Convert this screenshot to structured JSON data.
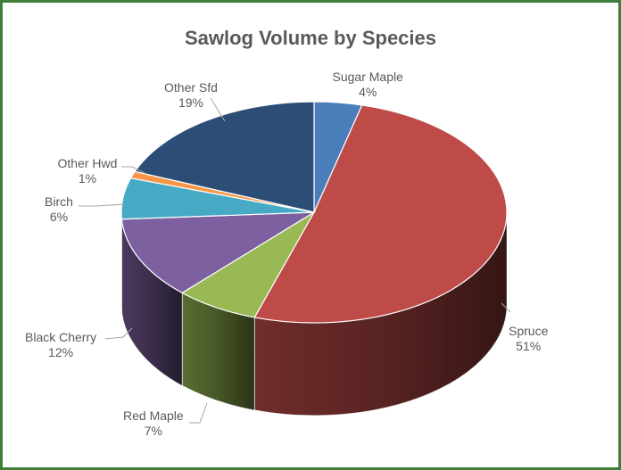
{
  "chart_data": {
    "type": "pie",
    "title": "Sawlog Volume by Species",
    "categories": [
      "Sugar Maple",
      "Spruce",
      "Red Maple",
      "Black Cherry",
      "Birch",
      "Other Hwd",
      "Other Sfd"
    ],
    "values": [
      4,
      51,
      7,
      12,
      6,
      1,
      19
    ],
    "value_labels": [
      "4%",
      "51%",
      "7%",
      "12%",
      "6%",
      "1%",
      "19%"
    ],
    "colors": [
      "#4a7ebb",
      "#be4b48",
      "#98b954",
      "#7d60a0",
      "#46aac5",
      "#f79646",
      "#2c4d75"
    ],
    "legend": "none",
    "three_d": true
  }
}
